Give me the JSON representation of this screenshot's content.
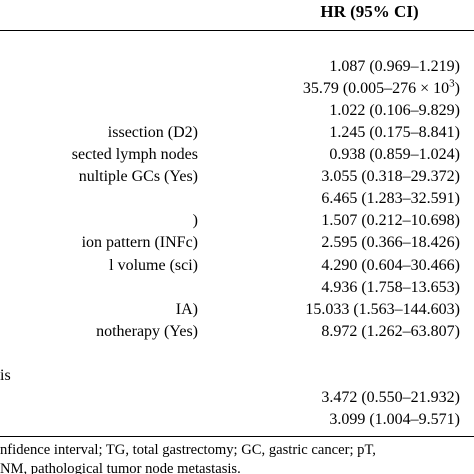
{
  "header": {
    "hr_label": "HR (95% CI)"
  },
  "rows": [
    {
      "label": "",
      "value": ""
    },
    {
      "label": "",
      "value": "1.087 (0.969–1.219)"
    },
    {
      "label": "",
      "value": "35.79 (0.005–276 × 10",
      "sup": "3",
      "value_end": ")"
    },
    {
      "label": "",
      "value": "1.022 (0.106–9.829)"
    },
    {
      "label": "issection (D2)",
      "value": "1.245 (0.175–8.841)"
    },
    {
      "label": "sected lymph nodes",
      "value": "0.938 (0.859–1.024)"
    },
    {
      "label": "nultiple GCs (Yes)",
      "value": "3.055 (0.318–29.372)"
    },
    {
      "label": "",
      "value": "6.465 (1.283–32.591)"
    },
    {
      "label": ")",
      "value": "1.507 (0.212–10.698)"
    },
    {
      "label": "ion pattern (INFc)",
      "value": "2.595 (0.366–18.426)"
    },
    {
      "label": "l volume (sci)",
      "value": "4.290 (0.604–30.466)"
    },
    {
      "label": "",
      "value": "4.936 (1.758–13.653)"
    },
    {
      "label": "IA)",
      "value": "15.033 (1.563–144.603)"
    },
    {
      "label": "notherapy (Yes)",
      "value": "8.972 (1.262–63.807)"
    },
    {
      "label": "",
      "value": ""
    },
    {
      "label": "is",
      "value": ""
    },
    {
      "label": "",
      "value": "3.472 (0.550–21.932)"
    },
    {
      "label": "",
      "value": "3.099 (1.004–9.571)"
    }
  ],
  "footnotes": [
    "nfidence interval; TG, total gastrectomy; GC, gastric cancer; pT,",
    "NM, pathological tumor node metastasis."
  ]
}
